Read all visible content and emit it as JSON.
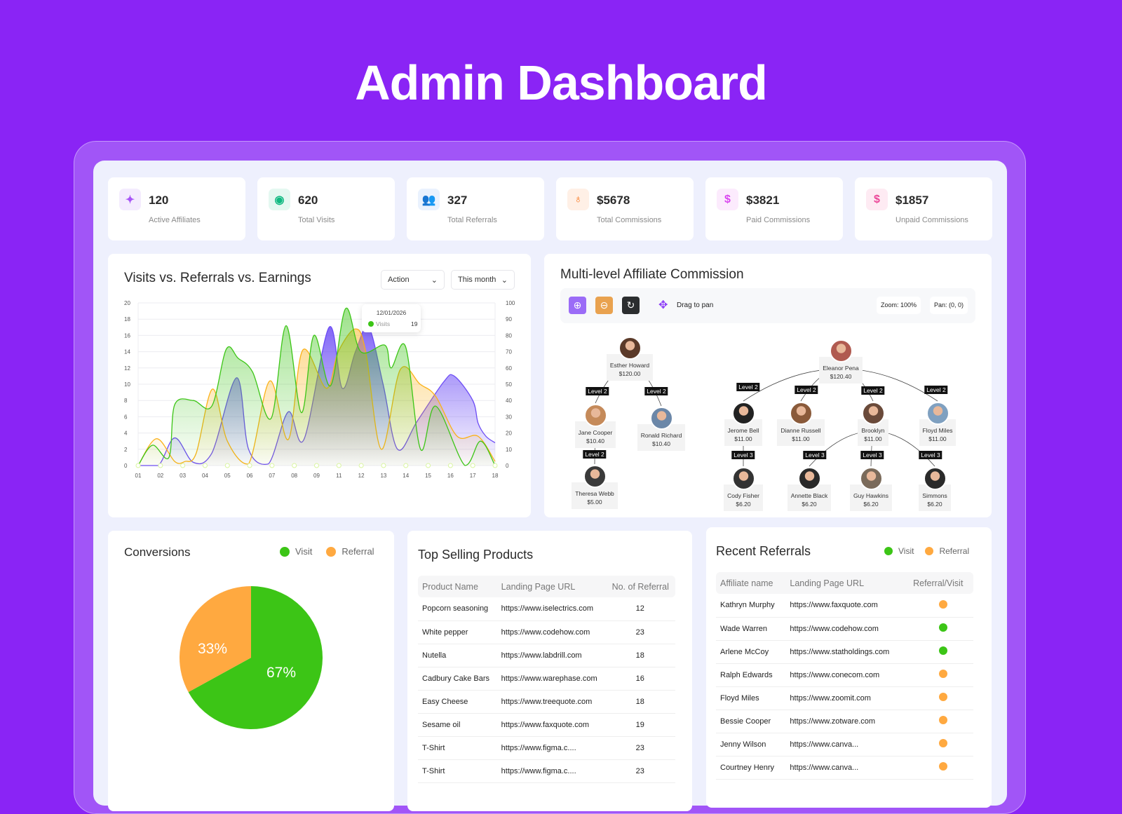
{
  "page_title": "Admin Dashboard",
  "stats": [
    {
      "value": "120",
      "label": "Active Affiliates",
      "icon": "affiliate-network-icon",
      "color": "#a855f7",
      "bg": "#f4ecfe"
    },
    {
      "value": "620",
      "label": "Total Visits",
      "icon": "eye-icon",
      "color": "#10b981",
      "bg": "#e4f8f1"
    },
    {
      "value": "327",
      "label": "Total Referrals",
      "icon": "users-icon",
      "color": "#4f8ef7",
      "bg": "#eaf2fe"
    },
    {
      "value": "$5678",
      "label": "Total Commissions",
      "icon": "money-bag-icon",
      "color": "#f97316",
      "bg": "#fff0e6"
    },
    {
      "value": "$3821",
      "label": "Paid Commissions",
      "icon": "dollar-check-icon",
      "color": "#d946ef",
      "bg": "#fcebfd"
    },
    {
      "value": "$1857",
      "label": "Unpaid Commissions",
      "icon": "dollar-pending-icon",
      "color": "#ec4899",
      "bg": "#feebf3"
    }
  ],
  "visits_chart": {
    "title": "Visits vs. Referrals vs. Earnings",
    "filter_action": "Action",
    "filter_period": "This month",
    "tooltip": {
      "date": "12/01/2026",
      "series": "Visits",
      "value": "19"
    }
  },
  "chart_data": {
    "type": "area",
    "categories": [
      "01",
      "02",
      "03",
      "04",
      "05",
      "06",
      "07",
      "08",
      "09",
      "11",
      "12",
      "13",
      "14",
      "15",
      "16",
      "17",
      "18"
    ],
    "y_left_ticks": [
      0,
      2,
      4,
      6,
      8,
      10,
      12,
      14,
      16,
      18,
      20
    ],
    "y_right_ticks": [
      0,
      10,
      20,
      30,
      40,
      50,
      60,
      70,
      80,
      90,
      100
    ],
    "ylim_left": [
      0,
      20
    ],
    "ylim_right": [
      0,
      100
    ],
    "grid": true,
    "series": [
      {
        "name": "Visits",
        "color": "#3cc516",
        "points": [
          [
            0,
            0
          ],
          [
            0.64,
            2.5
          ],
          [
            1.38,
            1
          ],
          [
            1.64,
            7.5
          ],
          [
            2.47,
            8
          ],
          [
            3.3,
            7.3
          ],
          [
            3.95,
            14.3
          ],
          [
            4.48,
            13.2
          ],
          [
            5.13,
            11.5
          ],
          [
            5.96,
            5.8
          ],
          [
            6.63,
            17.2
          ],
          [
            7.32,
            6.5
          ],
          [
            7.88,
            16
          ],
          [
            8.62,
            9.8
          ],
          [
            9.3,
            19.3
          ],
          [
            9.98,
            14
          ],
          [
            11.06,
            14.8
          ],
          [
            11.34,
            12
          ],
          [
            11.99,
            14.6
          ],
          [
            12.66,
            2
          ],
          [
            13.34,
            7.3
          ],
          [
            14.65,
            0
          ],
          [
            15.35,
            3
          ],
          [
            16,
            0
          ]
        ]
      },
      {
        "color": "#fbb117",
        "points": [
          [
            0,
            0
          ],
          [
            0.82,
            3.3
          ],
          [
            1.64,
            0.5
          ],
          [
            2.1,
            0.5
          ],
          [
            2.6,
            1.5
          ],
          [
            3.33,
            9.4
          ],
          [
            4.0,
            3
          ],
          [
            4.95,
            0.2
          ],
          [
            5.9,
            10.4
          ],
          [
            6.73,
            3.2
          ],
          [
            7.38,
            14.2
          ],
          [
            8.44,
            9.5
          ],
          [
            8.97,
            14
          ],
          [
            9.74,
            16.8
          ],
          [
            10.2,
            14
          ],
          [
            10.9,
            2
          ],
          [
            11.75,
            11.8
          ],
          [
            12.64,
            10
          ],
          [
            13.34,
            8.5
          ],
          [
            14.3,
            3.6
          ],
          [
            15.24,
            3.6
          ],
          [
            16,
            0.5
          ]
        ]
      },
      {
        "color": "#6c4cf5",
        "points": [
          [
            0,
            0
          ],
          [
            0.9,
            0
          ],
          [
            1.64,
            3.4
          ],
          [
            2.47,
            0.4
          ],
          [
            3.3,
            1.5
          ],
          [
            4.42,
            10.8
          ],
          [
            4.95,
            2
          ],
          [
            5.84,
            0.2
          ],
          [
            6.73,
            6.6
          ],
          [
            7.43,
            3.2
          ],
          [
            8.56,
            17
          ],
          [
            9.15,
            9.5
          ],
          [
            9.74,
            14
          ],
          [
            10.33,
            17
          ],
          [
            10.98,
            10
          ],
          [
            11.63,
            2
          ],
          [
            12.52,
            5.5
          ],
          [
            13.7,
            10.3
          ],
          [
            14.17,
            11
          ],
          [
            15.0,
            8
          ],
          [
            15.24,
            5.2
          ],
          [
            15.59,
            3.6
          ],
          [
            16,
            2.8
          ]
        ]
      }
    ]
  },
  "tree": {
    "title": "Multi-level Affiliate Commission",
    "drag_label": "Drag to pan",
    "zoom_label": "Zoom: 100%",
    "pan_label": "Pan: (0, 0)",
    "nodes": [
      {
        "name": "Esther Howard",
        "amount": "$120.00"
      },
      {
        "name": "Jane Cooper",
        "amount": "$10.40"
      },
      {
        "name": "Ronald Richard",
        "amount": "$10.40"
      },
      {
        "name": "Theresa Webb",
        "amount": "$5.00"
      },
      {
        "name": "Eleanor Pena",
        "amount": "$120.40"
      },
      {
        "name": "Jerome Bell",
        "amount": "$11.00"
      },
      {
        "name": "Dianne Russell",
        "amount": "$11.00"
      },
      {
        "name": "Brooklyn",
        "amount": "$11.00"
      },
      {
        "name": "Floyd Miles",
        "amount": "$11.00"
      },
      {
        "name": "Cody Fisher",
        "amount": "$6.20"
      },
      {
        "name": "Annette Black",
        "amount": "$6.20"
      },
      {
        "name": "Guy Hawkins",
        "amount": "$6.20"
      },
      {
        "name": "Simmons",
        "amount": "$6.20"
      }
    ],
    "levels": [
      "Level 2",
      "Level 2",
      "Level 2",
      "Level 2",
      "Level 2",
      "Level 2",
      "Level 2",
      "Level 3",
      "Level 3",
      "Level 3",
      "Level 3"
    ]
  },
  "conversions": {
    "title": "Conversions",
    "legend_visit": "Visit",
    "legend_referral": "Referral",
    "visit_pct": 67,
    "referral_pct": 33,
    "visit_label": "67%",
    "referral_label": "33%",
    "visit_color": "#3cc516",
    "referral_color": "#ffa940"
  },
  "top_products": {
    "title": "Top Selling Products",
    "columns": [
      "Product Name",
      "Landing Page URL",
      "No. of Referral"
    ],
    "rows": [
      [
        "Popcorn seasoning",
        "https://www.iselectrics.com",
        "12"
      ],
      [
        "White pepper",
        "https://www.codehow.com",
        "23"
      ],
      [
        "Nutella",
        "https://www.labdrill.com",
        "18"
      ],
      [
        "Cadbury Cake Bars",
        "https://www.warephase.com",
        "16"
      ],
      [
        "Easy Cheese",
        "https://www.treequote.com",
        "18"
      ],
      [
        "Sesame oil",
        "https://www.faxquote.com",
        "19"
      ],
      [
        "T-Shirt",
        "https://www.figma.c....",
        "23"
      ],
      [
        "T-Shirt",
        "https://www.figma.c....",
        "23"
      ]
    ]
  },
  "recent_referrals": {
    "title": "Recent Referrals",
    "legend_visit": "Visit",
    "legend_referral": "Referral",
    "columns": [
      "Affiliate name",
      "Landing Page URL",
      "Referral/Visit"
    ],
    "rows": [
      [
        "Kathryn Murphy",
        "https://www.faxquote.com",
        "referral"
      ],
      [
        "Wade Warren",
        "https://www.codehow.com",
        "visit"
      ],
      [
        "Arlene McCoy",
        "https://www.statholdings.com",
        "visit"
      ],
      [
        "Ralph Edwards",
        "https://www.conecom.com",
        "referral"
      ],
      [
        "Floyd Miles",
        "https://www.zoomit.com",
        "referral"
      ],
      [
        "Bessie Cooper",
        "https://www.zotware.com",
        "referral"
      ],
      [
        "Jenny Wilson",
        "https://www.canva...",
        "referral"
      ],
      [
        "Courtney Henry",
        "https://www.canva...",
        "referral"
      ]
    ]
  }
}
